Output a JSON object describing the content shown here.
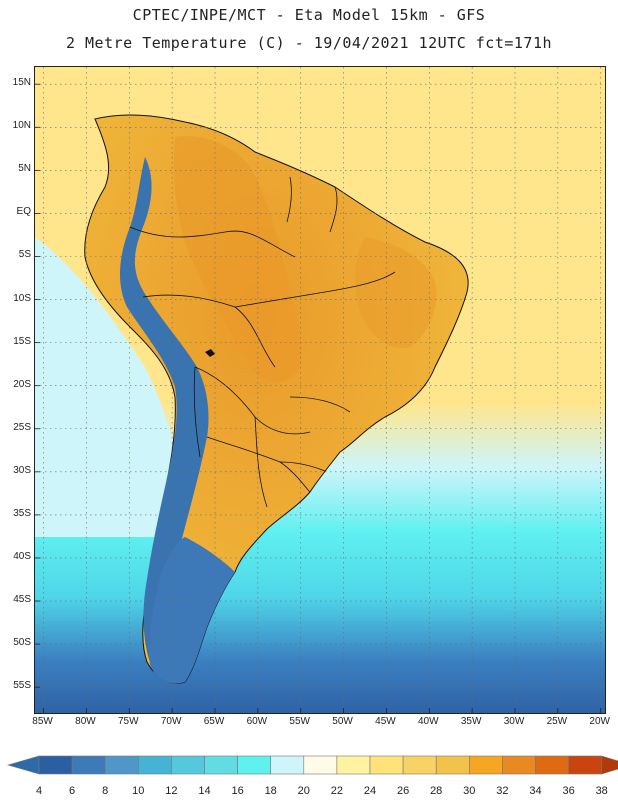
{
  "header": {
    "line1": "CPTEC/INPE/MCT  -  Eta Model 15km - GFS",
    "line2": "2 Metre Temperature (C) - 19/04/2021 12UTC fct=171h"
  },
  "axes": {
    "lat_labels": [
      "15N",
      "10N",
      "5N",
      "EQ",
      "5S",
      "10S",
      "15S",
      "20S",
      "25S",
      "30S",
      "35S",
      "40S",
      "45S",
      "50S",
      "55S"
    ],
    "lon_labels": [
      "85W",
      "80W",
      "75W",
      "70W",
      "65W",
      "60W",
      "55W",
      "50W",
      "45W",
      "40W",
      "35W",
      "30W",
      "25W",
      "20W"
    ],
    "lat_range": [
      17,
      -58
    ],
    "lon_range": [
      -86,
      -19.5
    ],
    "grid": "dotted"
  },
  "colorbar": {
    "labels": [
      "4",
      "6",
      "8",
      "10",
      "12",
      "14",
      "16",
      "18",
      "20",
      "22",
      "24",
      "26",
      "28",
      "30",
      "32",
      "34",
      "36",
      "38"
    ],
    "colors": [
      "#2b5fa3",
      "#3d7ab8",
      "#4f97c8",
      "#45b3d6",
      "#55c8dc",
      "#62dbe5",
      "#5ff0f0",
      "#cdf5fa",
      "#fffbe6",
      "#fff2a0",
      "#ffe27a",
      "#f7d265",
      "#f2c24a",
      "#f5a623",
      "#e98a20",
      "#de6b14",
      "#c9440f"
    ],
    "under_color": "#2d6aa8",
    "over_color": "#b03a0c"
  },
  "map_colors": {
    "ocean_north": "#ffe68c",
    "land_hot": "#f0b83c",
    "land_very_hot": "#e99a2a",
    "andes_cold": "#3a74b0",
    "patagonia": "#3d78b8",
    "ocean_mid": "#4fd6e8",
    "ocean_cyan": "#5ff0f0",
    "ocean_light": "#cdf5fa",
    "ocean_south": "#3b7fc0",
    "ocean_deep": "#2f63a6",
    "border": "#111111"
  }
}
